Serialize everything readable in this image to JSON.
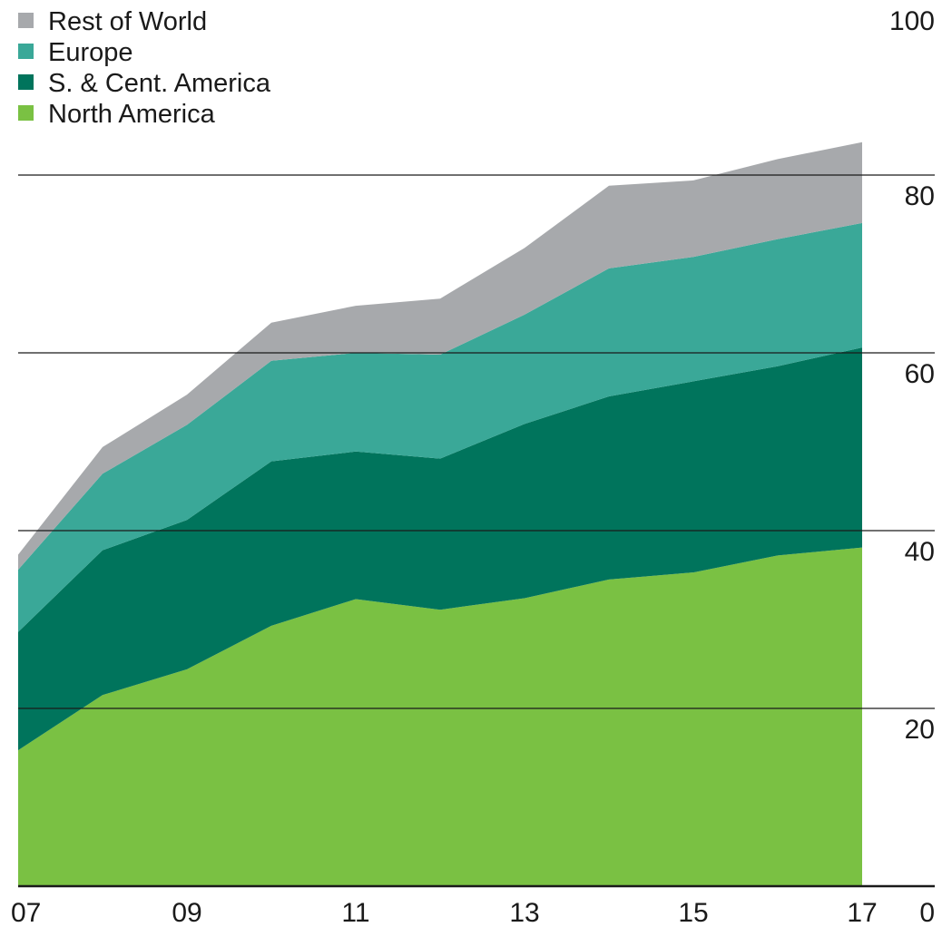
{
  "chart_data": {
    "type": "area",
    "stacked": true,
    "x": [
      2007,
      2008,
      2009,
      2010,
      2011,
      2012,
      2013,
      2014,
      2015,
      2016,
      2017
    ],
    "x_tick_values": [
      2007,
      2009,
      2011,
      2013,
      2015,
      2017
    ],
    "x_tick_labels": [
      "07",
      "09",
      "11",
      "13",
      "15",
      "17"
    ],
    "y_ticks": [
      0,
      20,
      40,
      60,
      80,
      100
    ],
    "y_tick_labels": [
      "0",
      "20",
      "40",
      "60",
      "80",
      "100"
    ],
    "ylim": [
      0,
      100
    ],
    "y_axis_side": "right",
    "grid": "horizontal",
    "legend_position": "top-left",
    "series": [
      {
        "name": "North America",
        "color": "#7ac143",
        "values": [
          15.3,
          21.5,
          24.4,
          29.3,
          32.3,
          31.1,
          32.4,
          34.5,
          35.3,
          37.2,
          38.1
        ]
      },
      {
        "name": "S. & Cent. America",
        "color": "#00745c",
        "values": [
          13.3,
          16.3,
          16.8,
          18.5,
          16.6,
          17.0,
          19.6,
          20.6,
          21.5,
          21.3,
          22.5
        ]
      },
      {
        "name": "Europe",
        "color": "#3aa898",
        "values": [
          7.0,
          8.6,
          10.7,
          11.3,
          11.1,
          11.7,
          12.3,
          14.4,
          14.0,
          14.3,
          14.0
        ]
      },
      {
        "name": "Rest of World",
        "color": "#a7a9ac",
        "values": [
          1.7,
          3.0,
          3.4,
          4.3,
          5.3,
          6.3,
          7.5,
          9.3,
          8.6,
          9.0,
          9.1
        ]
      }
    ]
  }
}
